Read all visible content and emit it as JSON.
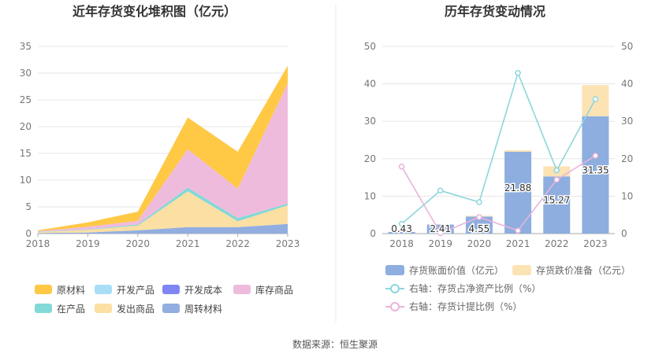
{
  "left_chart": {
    "title": "近年存货变化堆积图（亿元）",
    "legend": [
      {
        "name": "原材料",
        "color": "#FFC845"
      },
      {
        "name": "开发产品",
        "color": "#A9DEF7"
      },
      {
        "name": "开发成本",
        "color": "#7F86F4"
      },
      {
        "name": "库存商品",
        "color": "#EFBBDC"
      },
      {
        "name": "在产品",
        "color": "#83D8D8"
      },
      {
        "name": "发出商品",
        "color": "#FBDFA3"
      },
      {
        "name": "周转材料",
        "color": "#92AEE0"
      }
    ]
  },
  "right_chart": {
    "title": "历年存货变动情况",
    "legend": {
      "bar1": "存货账面价值（亿元）",
      "bar2": "存货跌价准备（亿元）",
      "line1": "右轴：存货占净资产比例（%）",
      "line2": "右轴：存货计提比例（%）"
    },
    "colors": {
      "bar1": "#8DAEDF",
      "bar2": "#FCE3B4",
      "line1": "#8DD6DD",
      "line2": "#E9B4DA"
    }
  },
  "source": "数据来源：恒生聚源",
  "chart_data": [
    {
      "type": "area",
      "title": "近年存货变化堆积图（亿元）",
      "x": [
        "2018",
        "2019",
        "2020",
        "2021",
        "2022",
        "2023"
      ],
      "ylim": [
        0,
        35
      ],
      "yticks": [
        0,
        5,
        10,
        15,
        20,
        25,
        30,
        35
      ],
      "stacked": true,
      "series": [
        {
          "name": "周转材料",
          "values": [
            0.1,
            0.2,
            0.6,
            1.2,
            1.2,
            1.8
          ]
        },
        {
          "name": "发出商品",
          "values": [
            0.2,
            0.5,
            0.9,
            6.7,
            1.1,
            3.5
          ]
        },
        {
          "name": "在产品",
          "values": [
            0.05,
            0.1,
            0.2,
            0.7,
            0.6,
            0.3
          ]
        },
        {
          "name": "开发成本",
          "values": [
            0,
            0,
            0,
            0,
            0,
            0
          ]
        },
        {
          "name": "库存商品",
          "values": [
            0.1,
            0.5,
            0.7,
            7.2,
            5.5,
            22.5
          ]
        },
        {
          "name": "开发产品",
          "values": [
            0,
            0,
            0,
            0,
            0,
            0
          ]
        },
        {
          "name": "原材料",
          "values": [
            0.15,
            0.8,
            1.7,
            5.9,
            6.9,
            3.3
          ]
        }
      ]
    },
    {
      "type": "bar",
      "title": "历年存货变动情况",
      "categories": [
        "2018",
        "2019",
        "2020",
        "2021",
        "2022",
        "2023"
      ],
      "ylim": [
        0,
        50
      ],
      "y2lim": [
        0,
        50
      ],
      "yticks": [
        0,
        10,
        20,
        30,
        40,
        50
      ],
      "stacked": true,
      "series": [
        {
          "name": "存货账面价值（亿元）",
          "values": [
            0.43,
            2.41,
            4.55,
            21.88,
            15.27,
            31.35
          ],
          "labels": [
            "0.43",
            "2.41",
            "4.55",
            "21.88",
            "15.27",
            "31.35"
          ]
        },
        {
          "name": "存货跌价准备（亿元）",
          "values": [
            0.02,
            0.05,
            0.2,
            0.4,
            2.7,
            8.3
          ]
        }
      ],
      "lines": [
        {
          "name": "右轴：存货占净资产比例（%）",
          "axis": "right",
          "values": [
            2.6,
            11.5,
            8.4,
            42.9,
            16.9,
            35.9
          ]
        },
        {
          "name": "右轴：存货计提比例（%）",
          "axis": "right",
          "values": [
            17.9,
            0.1,
            4.4,
            0.8,
            14.4,
            20.8
          ]
        }
      ]
    }
  ]
}
